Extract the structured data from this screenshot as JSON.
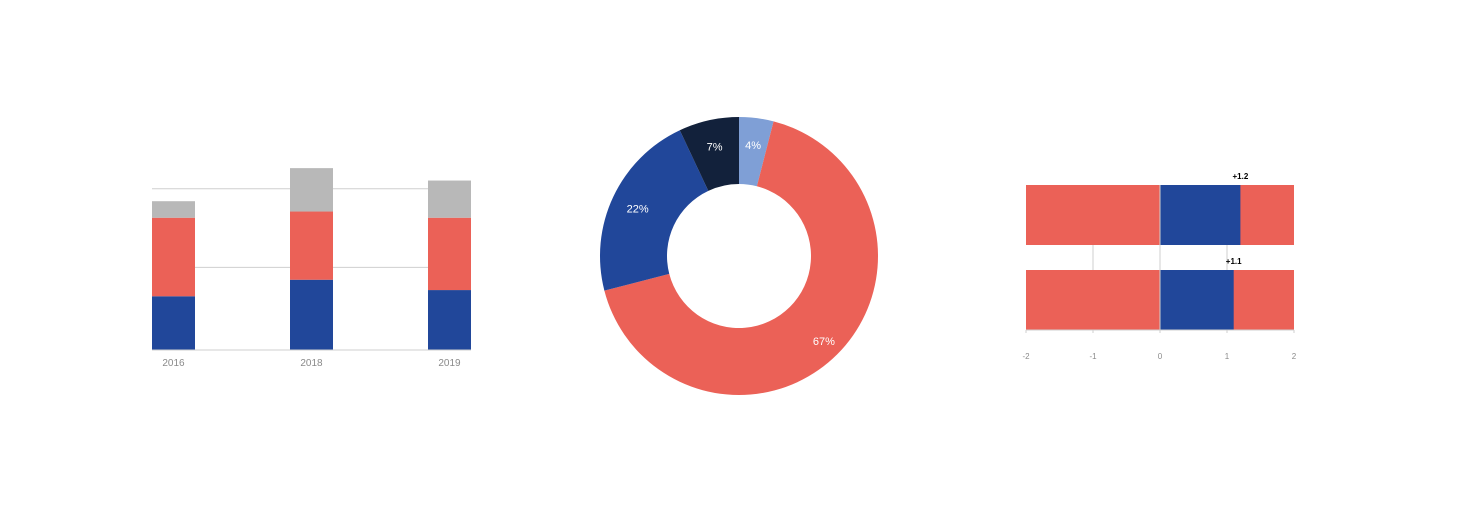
{
  "colors": {
    "blue": "#21479a",
    "red": "#eb6157",
    "gray": "#b8b8b8",
    "light_blue": "#7f9fd6",
    "navy": "#12213b",
    "grid": "#cfcfcf",
    "tick_text": "#8a8a8a"
  },
  "chart_data": [
    {
      "type": "bar",
      "stacked": true,
      "categories": [
        "2016",
        "2018",
        "2019"
      ],
      "series": [
        {
          "color": "#21479a",
          "values": [
            26,
            34,
            29
          ]
        },
        {
          "color": "#eb6157",
          "values": [
            38,
            33,
            35
          ]
        },
        {
          "color": "#b8b8b8",
          "values": [
            8,
            21,
            18
          ]
        }
      ],
      "ylim": [
        0,
        90
      ],
      "gridlines": [
        40,
        78
      ],
      "grid": true,
      "title": "",
      "xlabel": "",
      "ylabel": ""
    },
    {
      "type": "pie",
      "donut": true,
      "slices": [
        {
          "label": "4%",
          "value": 4,
          "color": "#7f9fd6"
        },
        {
          "label": "67%",
          "value": 67,
          "color": "#eb6157"
        },
        {
          "label": "22%",
          "value": 22,
          "color": "#21479a"
        },
        {
          "label": "7%",
          "value": 7,
          "color": "#12213b"
        }
      ],
      "title": ""
    },
    {
      "type": "bar",
      "orientation": "horizontal",
      "xlim": [
        -2,
        2
      ],
      "xticks": [
        "-2",
        "-1",
        "0",
        "1",
        "2"
      ],
      "bars": [
        {
          "value": 1.2,
          "label": "+1.2"
        },
        {
          "value": 1.1,
          "label": "+1.1"
        }
      ],
      "background_color": "#eb6157",
      "bar_color": "#21479a",
      "grid": true,
      "title": "",
      "xlabel": "",
      "ylabel": ""
    }
  ]
}
